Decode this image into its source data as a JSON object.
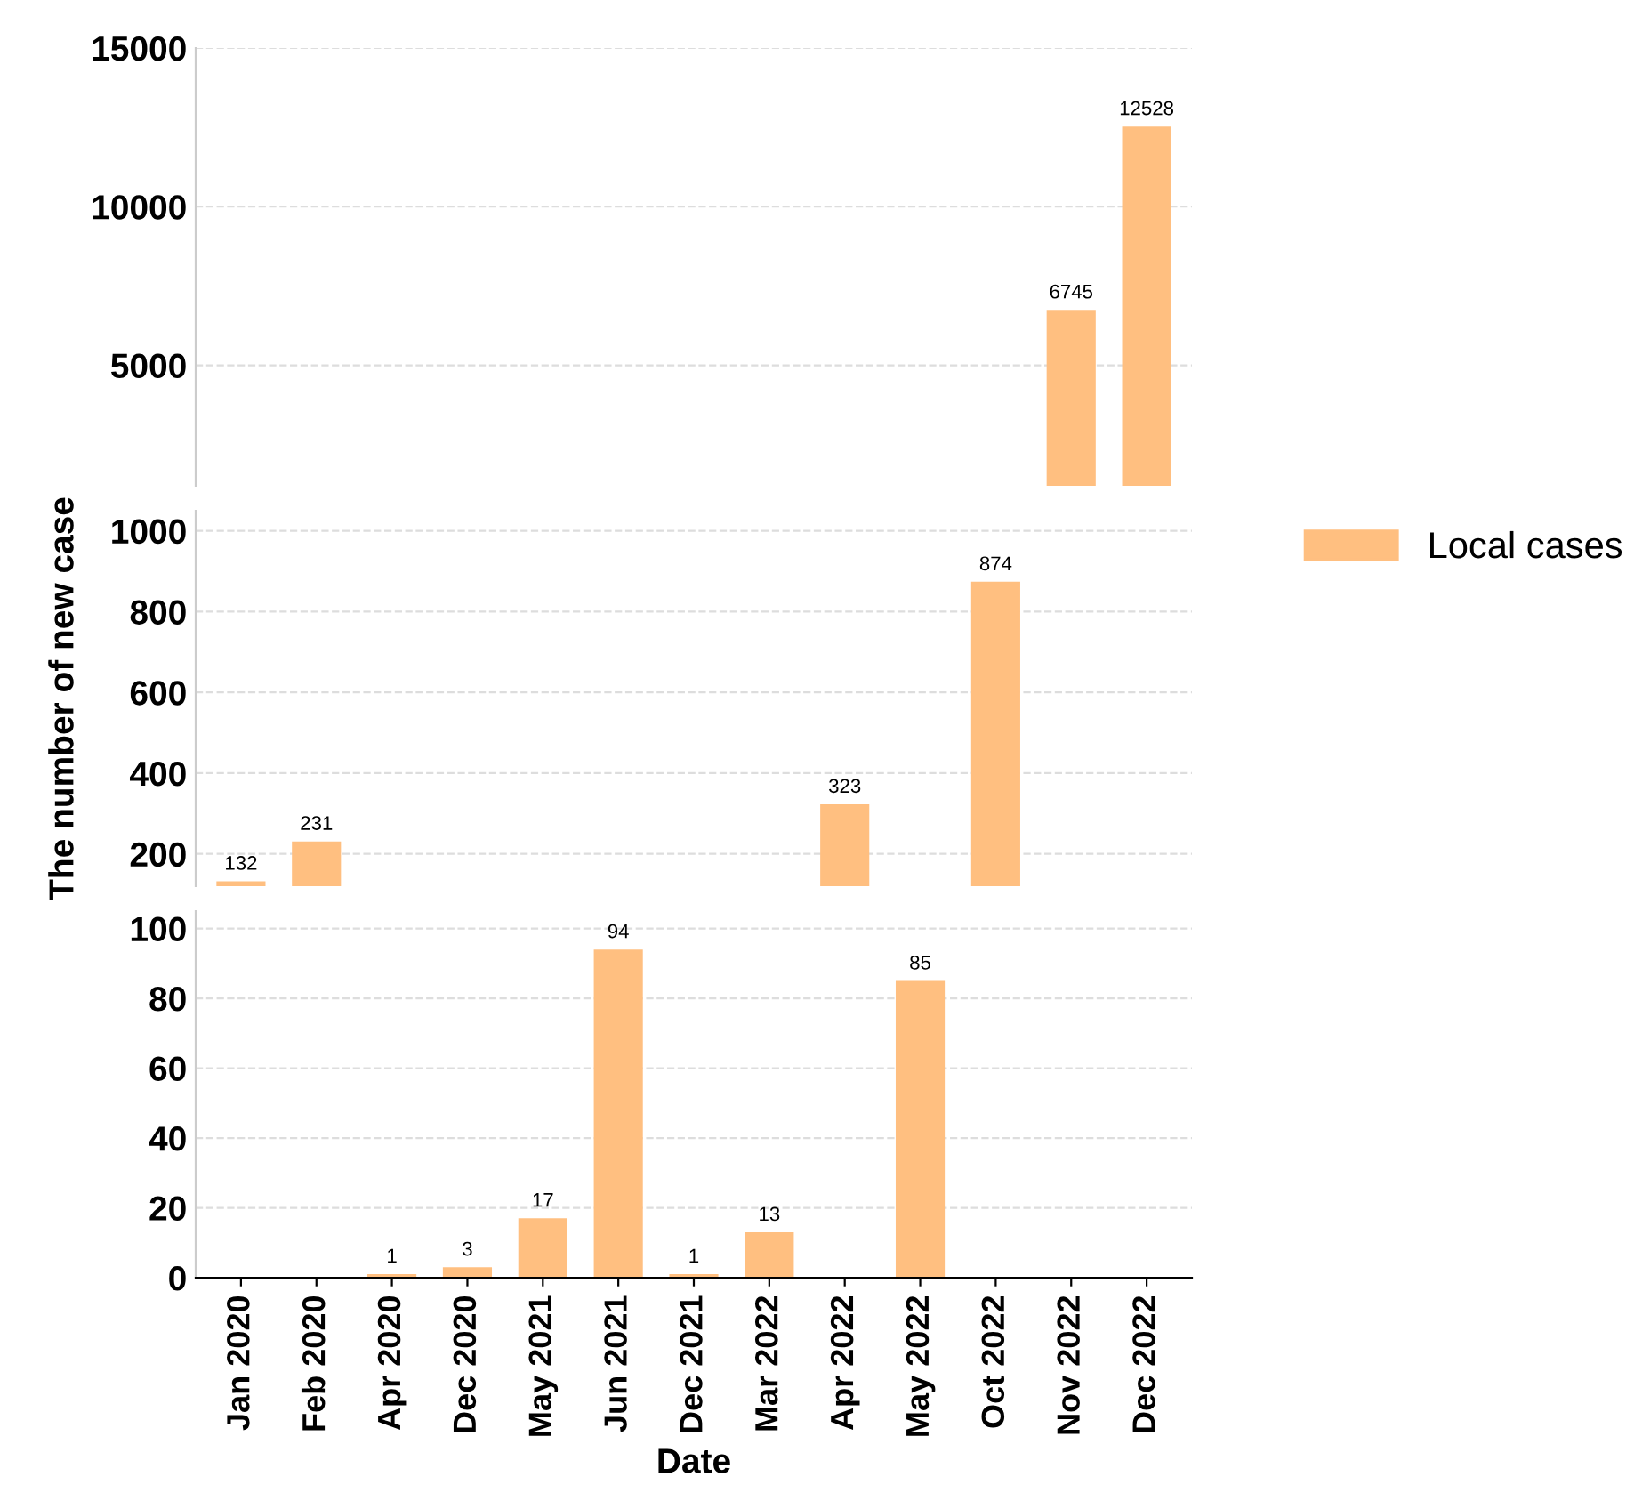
{
  "chart_data": [
    {
      "type": "bar",
      "categories": [
        null,
        null,
        null,
        null,
        null,
        null,
        null,
        null,
        null,
        null,
        null,
        null,
        null
      ],
      "series": [
        {
          "color": "#ffbf80",
          "values": [
            null,
            null,
            null,
            null,
            null,
            null,
            null,
            null,
            null,
            null,
            null,
            6745,
            12528
          ],
          "value_labels": [
            null,
            null,
            null,
            null,
            null,
            null,
            null,
            null,
            null,
            null,
            null,
            "6745",
            "12528"
          ]
        }
      ],
      "ylim": [
        1200,
        15000
      ],
      "yticks": [
        5000,
        10000,
        15000
      ],
      "grid": "y",
      "tick_labels": "y"
    },
    {
      "type": "bar",
      "categories": [
        null,
        null,
        null,
        null,
        null,
        null,
        null,
        null,
        null,
        null,
        null,
        null,
        null
      ],
      "series": [
        {
          "name": "Local cases",
          "color": "#ffbf80",
          "values": [
            132,
            231,
            null,
            null,
            null,
            null,
            null,
            null,
            323,
            null,
            874,
            null,
            null
          ],
          "value_labels": [
            "132",
            "231",
            null,
            null,
            null,
            null,
            null,
            null,
            "323",
            null,
            "874",
            null,
            null
          ]
        }
      ],
      "ylim": [
        120,
        1050
      ],
      "yticks": [
        200,
        400,
        600,
        800,
        1000
      ],
      "ylabel": "The number of new case",
      "grid": "y",
      "tick_labels": "y",
      "legend": "right"
    },
    {
      "type": "bar",
      "categories": [
        "Jan 2020",
        "Feb 2020",
        "Apr 2020",
        "Dec 2020",
        "May 2021",
        "Jun 2021",
        "Dec 2021",
        "Mar 2022",
        "Apr 2022",
        "May 2022",
        "Oct 2022",
        "Nov 2022",
        "Dec 2022"
      ],
      "series": [
        {
          "color": "#ffbf80",
          "values": [
            null,
            null,
            1,
            3,
            17,
            94,
            1,
            13,
            null,
            85,
            null,
            null,
            null
          ],
          "value_labels": [
            null,
            null,
            "1",
            "3",
            "17",
            "94",
            "1",
            "13",
            null,
            "85",
            null,
            null,
            null
          ]
        }
      ],
      "ylim": [
        0,
        105
      ],
      "yticks": [
        0,
        20,
        40,
        60,
        80,
        100
      ],
      "xlabel": "Date",
      "grid": "y"
    }
  ]
}
